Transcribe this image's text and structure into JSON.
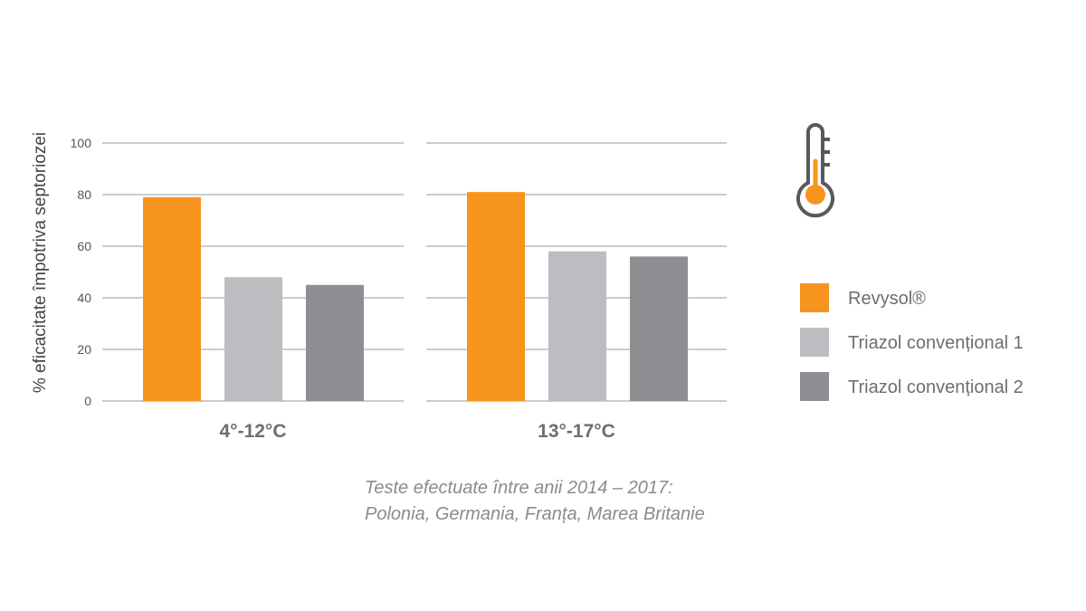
{
  "chart_data": {
    "type": "bar",
    "categories": [
      "4°-12°C",
      "13°-17°C"
    ],
    "series": [
      {
        "name": "Revysol®",
        "values": [
          79,
          81
        ],
        "color": "#f7941d"
      },
      {
        "name": "Triazol convențional 1",
        "values": [
          48,
          58
        ],
        "color": "#bcbdc0"
      },
      {
        "name": "Triazol convențional 2",
        "values": [
          45,
          56
        ],
        "color": "#8e8f92"
      }
    ],
    "ylabel": "% eficacitate împotriva septoriozei",
    "ylim": [
      0,
      100
    ],
    "yticks": [
      0,
      20,
      40,
      60,
      80,
      100
    ],
    "grid": true,
    "legend_position": "right",
    "note_lines": [
      "Teste efectuate între anii 2014 – 2017:",
      "Polonia, Germania, Franța, Marea Britanie"
    ],
    "icon": "thermometer-icon",
    "colors": {
      "accent": "#f7941d",
      "grid": "#9a9a9a",
      "icon_outline": "#58595b"
    }
  }
}
